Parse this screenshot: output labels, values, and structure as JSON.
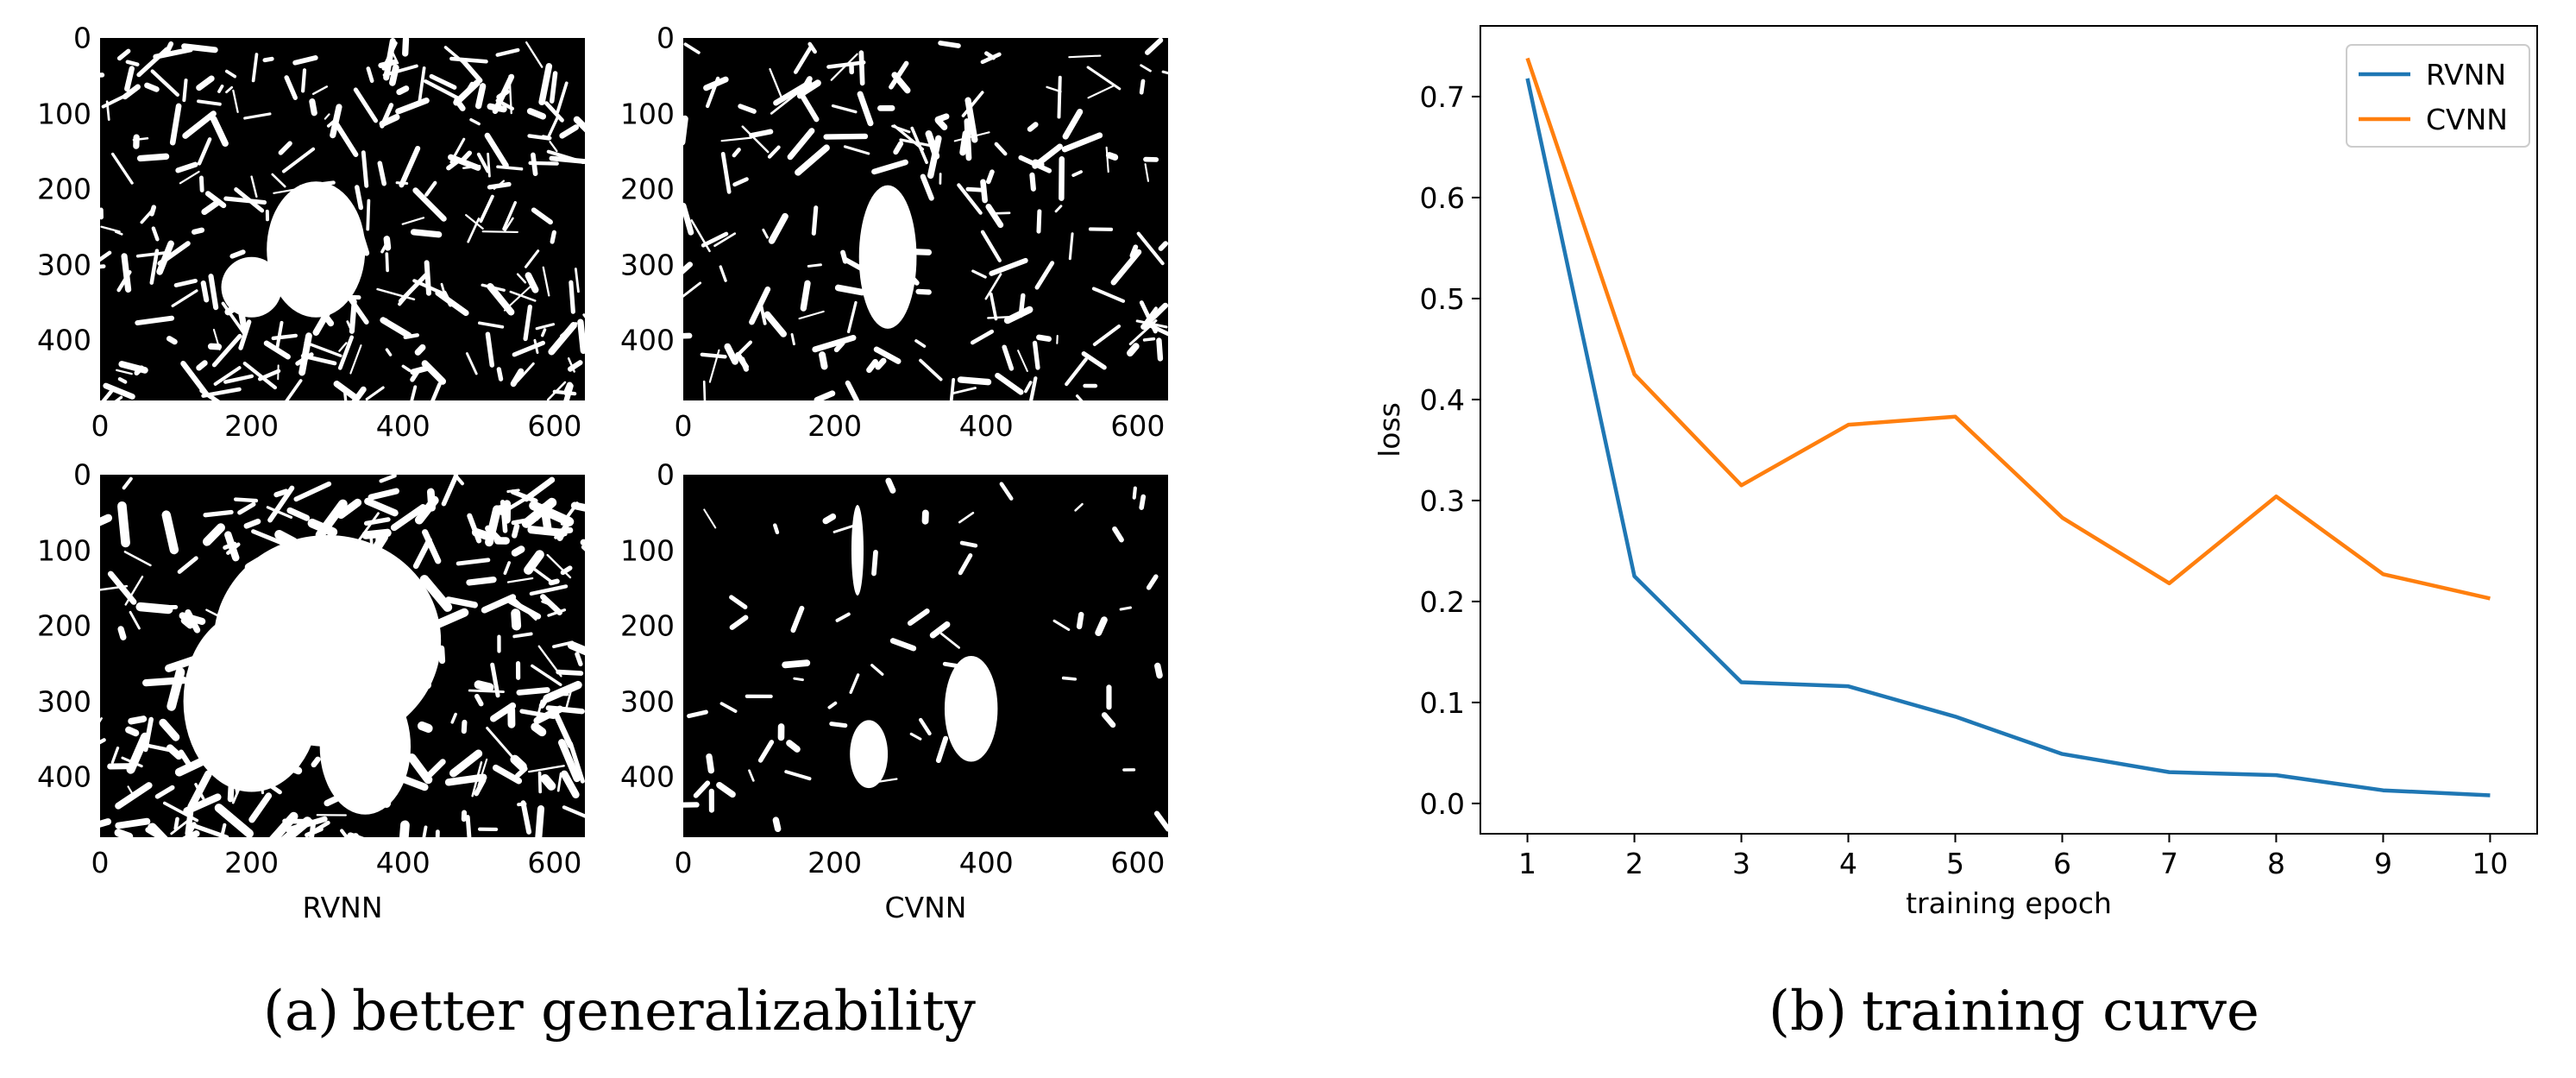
{
  "chart_data": [
    {
      "type": "heatmap",
      "panel": "image-grid",
      "xlim": [
        0,
        640
      ],
      "ylim": [
        480,
        0
      ],
      "xticks": [
        "0",
        "200",
        "400",
        "600"
      ],
      "yticks": [
        "0",
        "100",
        "200",
        "300",
        "400"
      ],
      "column_labels": [
        "RVNN",
        "CVNN"
      ],
      "caption_tag": "(a)",
      "caption": "better generalizability",
      "colormap": {
        "low": "#000000",
        "high": "#ffffff"
      }
    },
    {
      "type": "line",
      "panel": "training-curve",
      "x": [
        1,
        2,
        3,
        4,
        5,
        6,
        7,
        8,
        9,
        10
      ],
      "xlabel": "training epoch",
      "ylabel": "loss",
      "ylim": [
        -0.03,
        0.77
      ],
      "yticks": [
        "0.0",
        "0.1",
        "0.2",
        "0.3",
        "0.4",
        "0.5",
        "0.6",
        "0.7"
      ],
      "xticks": [
        "1",
        "2",
        "3",
        "4",
        "5",
        "6",
        "7",
        "8",
        "9",
        "10"
      ],
      "legend_position": "top-right",
      "grid": false,
      "series": [
        {
          "name": "RVNN",
          "color": "#1f77b4",
          "values": [
            0.718,
            0.225,
            0.12,
            0.116,
            0.086,
            0.049,
            0.031,
            0.028,
            0.013,
            0.008
          ]
        },
        {
          "name": "CVNN",
          "color": "#ff7f0e",
          "values": [
            0.738,
            0.425,
            0.315,
            0.375,
            0.383,
            0.283,
            0.218,
            0.304,
            0.227,
            0.203
          ]
        }
      ],
      "caption_tag": "(b)",
      "caption": "training curve"
    }
  ]
}
